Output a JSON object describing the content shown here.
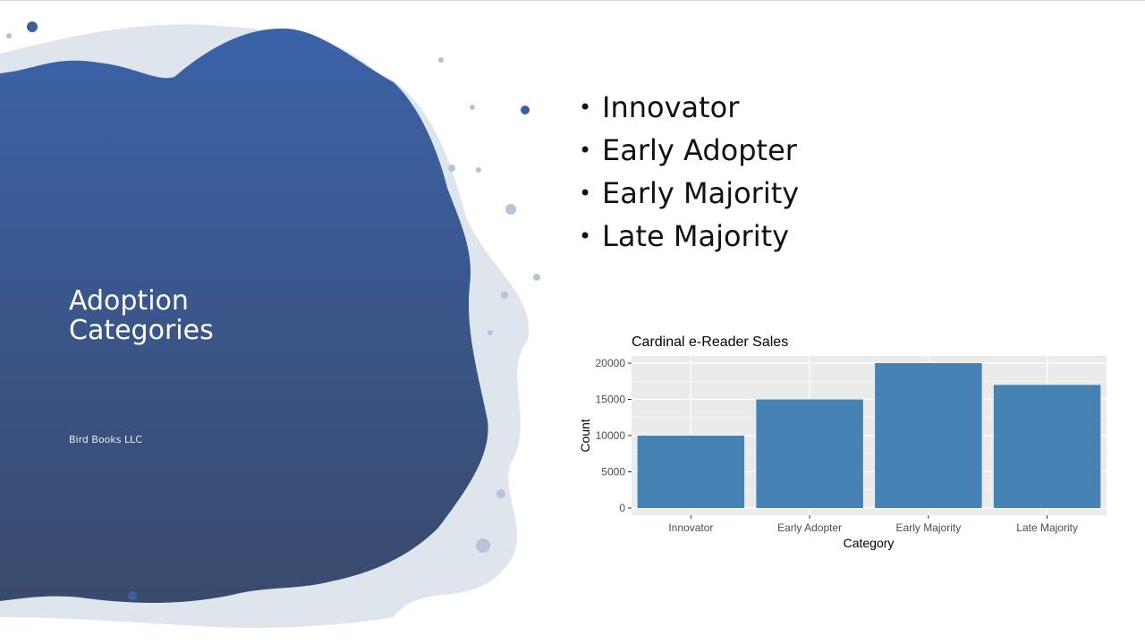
{
  "slide": {
    "title": "Adoption Categories",
    "subtitle": "Bird Books LLC",
    "bullet_glyph": "•",
    "bullets": [
      "Innovator",
      "Early Adopter",
      "Early Majority",
      "Late Majority"
    ]
  },
  "colors": {
    "splash_top": "#3b62a8",
    "splash_bottom": "#394a6c",
    "bar_fill": "#4682b4",
    "panel_bg": "#ebebeb",
    "grid": "#ffffff"
  },
  "chart_data": {
    "type": "bar",
    "title": "Cardinal e-Reader Sales",
    "xlabel": "Category",
    "ylabel": "Count",
    "categories": [
      "Innovator",
      "Early Adopter",
      "Early Majority",
      "Late Majority"
    ],
    "values": [
      10000,
      15000,
      20000,
      17000
    ],
    "ylim": [
      0,
      20000
    ],
    "yticks": [
      0,
      5000,
      10000,
      15000,
      20000
    ],
    "grid": true,
    "legend": "none"
  }
}
